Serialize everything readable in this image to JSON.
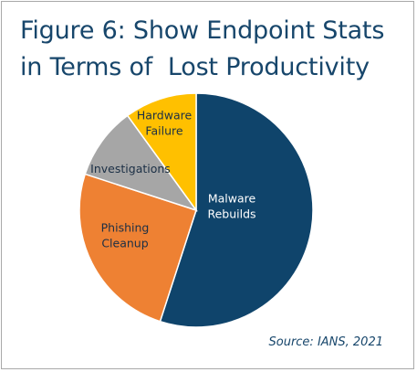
{
  "chart_data": {
    "type": "pie",
    "title_lines": [
      "Figure 6: Show Endpoint Stats",
      "in Terms of  Lost Productivity"
    ],
    "slices": [
      {
        "label_lines": [
          "Malware",
          "Rebuilds"
        ],
        "value": 55,
        "color": "#0f446b",
        "text_color": "#ffffff"
      },
      {
        "label_lines": [
          "Phishing",
          "Cleanup"
        ],
        "value": 25,
        "color": "#ee8133",
        "text_color": "#1b2f45"
      },
      {
        "label_lines": [
          "Investigations"
        ],
        "value": 10,
        "color": "#a6a6a6",
        "text_color": "#1b2f45"
      },
      {
        "label_lines": [
          "Hardware",
          "Failure"
        ],
        "value": 10,
        "color": "#ffc000",
        "text_color": "#1b2f45"
      }
    ],
    "source": "Source: IANS, 2021"
  }
}
